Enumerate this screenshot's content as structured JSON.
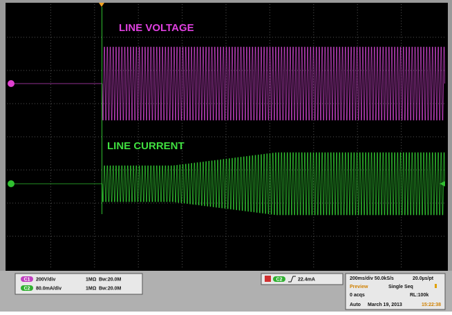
{
  "screen": {
    "voltage_label": "LINE VOLTAGE",
    "current_label": "LINE CURRENT"
  },
  "channels": [
    {
      "badge": "C1",
      "scale": "200V/div",
      "impedance": "1MΩ",
      "bandwidth": "Bw:20.0M"
    },
    {
      "badge": "C2",
      "scale": "80.0mA/div",
      "impedance": "1MΩ",
      "bandwidth": "Bw:20.0M"
    }
  ],
  "trigger": {
    "badge": "C2",
    "level": "22.4mA"
  },
  "acquisition": {
    "timebase": "200ms/div 50.0kS/s",
    "resolution": "20.0µs/pt",
    "mode": "Preview",
    "sequence": "Single Seq",
    "acqs": "0 acqs",
    "record_length": "RL:100k",
    "trigger_mode": "Auto",
    "date": "March 19, 2013",
    "time": "15:22:38"
  }
}
